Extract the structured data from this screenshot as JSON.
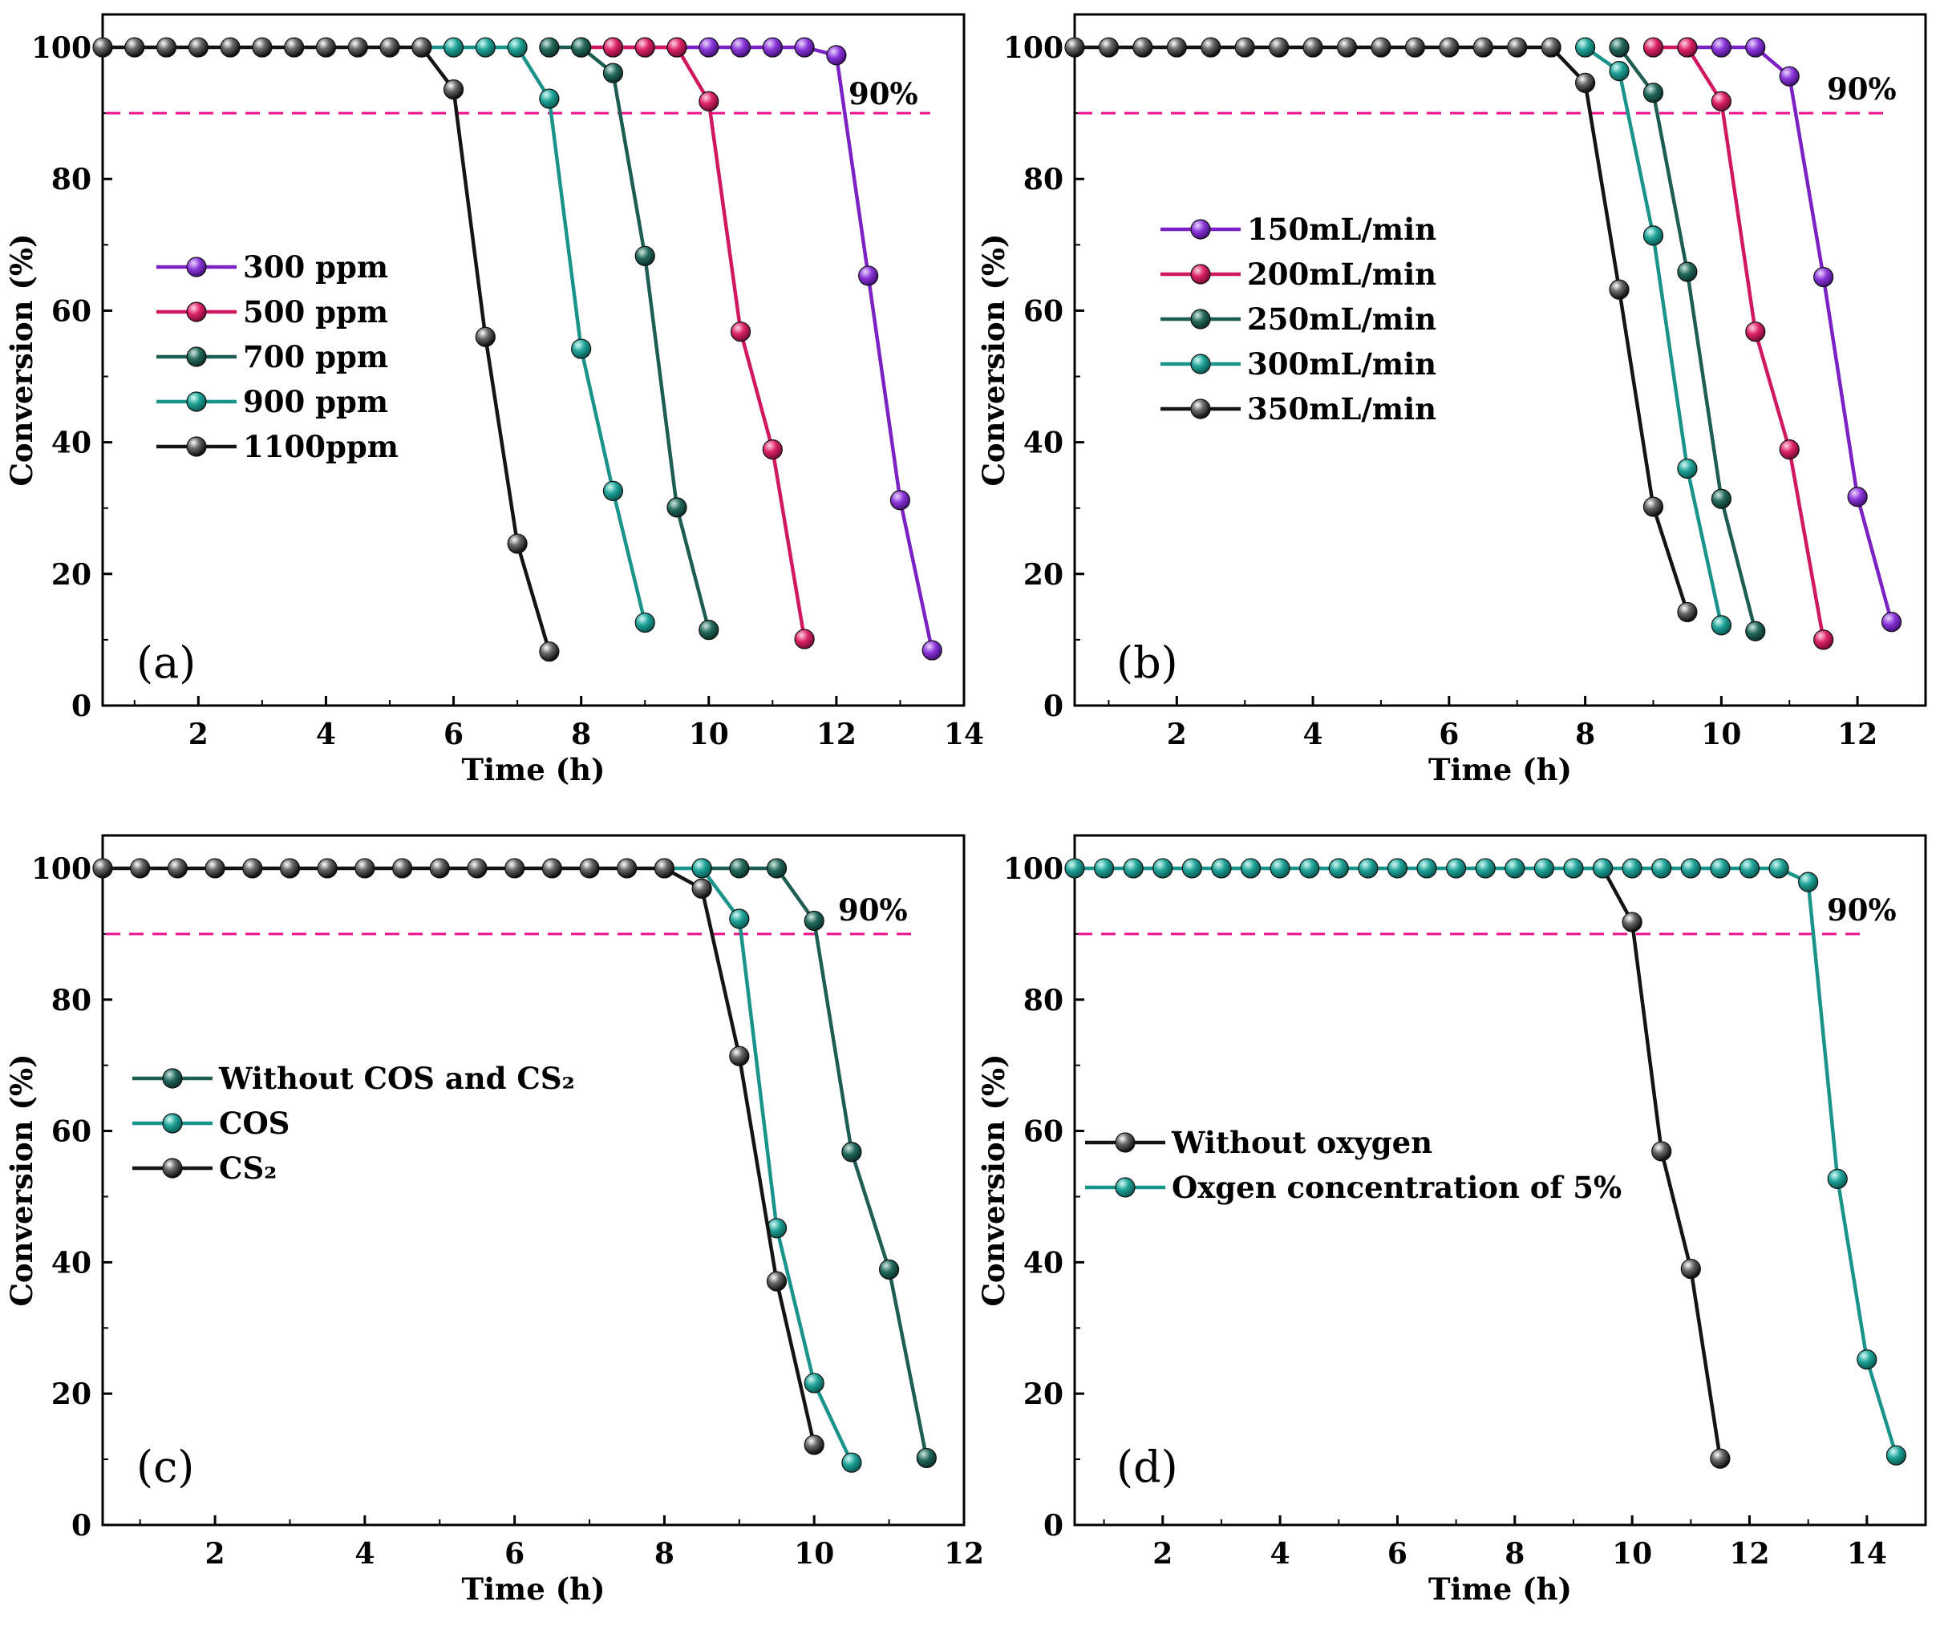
{
  "colors": {
    "purple": "#7a22c4",
    "crimson": "#d01860",
    "darkgreen": "#1e5e52",
    "teal": "#1a948a",
    "black": "#141414",
    "refline": "#f0128c"
  },
  "chart_data": [
    {
      "type": "line",
      "panel": "(a)",
      "xlabel": "Time (h)",
      "ylabel": "Conversion (%)",
      "xlim": [
        0.5,
        14
      ],
      "ylim": [
        0,
        105
      ],
      "xticks": [
        2,
        4,
        6,
        8,
        10,
        12,
        14
      ],
      "yticks": [
        0,
        20,
        40,
        60,
        80,
        100
      ],
      "reference_line": {
        "y": 90,
        "label": "90%"
      },
      "legend_position": "center-left",
      "series": [
        {
          "name": "300 ppm",
          "color": "purple",
          "x": [
            8.5,
            9,
            9.5,
            10,
            10.5,
            11,
            11.5,
            12,
            12.5,
            13,
            13.5
          ],
          "y": [
            100,
            100,
            100,
            100,
            100,
            100,
            100,
            98.8,
            65.3,
            31.2,
            8.4
          ]
        },
        {
          "name": "500 ppm",
          "color": "crimson",
          "x": [
            8,
            8.5,
            9,
            9.5,
            10,
            10.5,
            11,
            11.5
          ],
          "y": [
            100,
            100,
            100,
            100,
            91.8,
            56.8,
            38.9,
            10.1
          ]
        },
        {
          "name": "700 ppm",
          "color": "darkgreen",
          "x": [
            7.5,
            8,
            8.5,
            9,
            9.5,
            10
          ],
          "y": [
            100,
            100,
            96.1,
            68.3,
            30.1,
            11.5
          ]
        },
        {
          "name": "900 ppm",
          "color": "teal",
          "x": [
            5.5,
            6,
            6.5,
            7,
            7.5,
            8,
            8.5,
            9
          ],
          "y": [
            100,
            100,
            100,
            100,
            92.2,
            54.2,
            32.6,
            12.6
          ]
        },
        {
          "name": "1100ppm",
          "color": "black",
          "x": [
            0.5,
            1,
            1.5,
            2,
            2.5,
            3,
            3.5,
            4,
            4.5,
            5,
            5.5,
            6,
            6.5,
            7,
            7.5
          ],
          "y": [
            100,
            100,
            100,
            100,
            100,
            100,
            100,
            100,
            100,
            100,
            100,
            93.6,
            56.0,
            24.6,
            8.2
          ]
        }
      ]
    },
    {
      "type": "line",
      "panel": "(b)",
      "xlabel": "Time (h)",
      "ylabel": "Conversion (%)",
      "xlim": [
        0.5,
        13
      ],
      "ylim": [
        0,
        105
      ],
      "xticks": [
        2,
        4,
        6,
        8,
        10,
        12
      ],
      "yticks": [
        0,
        20,
        40,
        60,
        80,
        100
      ],
      "reference_line": {
        "y": 90,
        "label": "90%"
      },
      "legend_position": "center-left",
      "series": [
        {
          "name": "150mL/min",
          "color": "purple",
          "x": [
            9.5,
            10,
            10.5,
            11,
            11.5,
            12,
            12.5
          ],
          "y": [
            100,
            100,
            100,
            95.6,
            65.1,
            31.7,
            12.7
          ]
        },
        {
          "name": "200mL/min",
          "color": "crimson",
          "x": [
            9,
            9.5,
            10,
            10.5,
            11,
            11.5
          ],
          "y": [
            100,
            100,
            91.8,
            56.8,
            38.9,
            10.0
          ]
        },
        {
          "name": "250mL/min",
          "color": "darkgreen",
          "x": [
            8.5,
            9,
            9.5,
            10,
            10.5
          ],
          "y": [
            100,
            93.1,
            65.9,
            31.4,
            11.3
          ]
        },
        {
          "name": "300mL/min",
          "color": "teal",
          "x": [
            8,
            8.5,
            9,
            9.5,
            10
          ],
          "y": [
            100,
            96.4,
            71.4,
            36.0,
            12.2
          ]
        },
        {
          "name": "350mL/min",
          "color": "black",
          "x": [
            0.5,
            1,
            1.5,
            2,
            2.5,
            3,
            3.5,
            4,
            4.5,
            5,
            5.5,
            6,
            6.5,
            7,
            7.5,
            8,
            8.5,
            9,
            9.5
          ],
          "y": [
            100,
            100,
            100,
            100,
            100,
            100,
            100,
            100,
            100,
            100,
            100,
            100,
            100,
            100,
            100,
            94.6,
            63.2,
            30.2,
            14.2
          ]
        }
      ]
    },
    {
      "type": "line",
      "panel": "(c)",
      "xlabel": "Time (h)",
      "ylabel": "Conversion (%)",
      "xlim": [
        0.5,
        12
      ],
      "ylim": [
        0,
        105
      ],
      "xticks": [
        2,
        4,
        6,
        8,
        10,
        12
      ],
      "yticks": [
        0,
        20,
        40,
        60,
        80,
        100
      ],
      "reference_line": {
        "y": 90,
        "label": "90%"
      },
      "legend_position": "center-left",
      "series": [
        {
          "name": "Without COS and CS₂",
          "color": "darkgreen",
          "x": [
            8.5,
            9,
            9.5,
            10,
            10.5,
            11,
            11.5
          ],
          "y": [
            100,
            100,
            100,
            92.0,
            56.8,
            38.9,
            10.2
          ]
        },
        {
          "name": "COS",
          "color": "teal",
          "x": [
            8,
            8.5,
            9,
            9.5,
            10,
            10.5
          ],
          "y": [
            100,
            100,
            92.3,
            45.2,
            21.6,
            9.5
          ]
        },
        {
          "name": "CS₂",
          "color": "black",
          "x": [
            0.5,
            1,
            1.5,
            2,
            2.5,
            3,
            3.5,
            4,
            4.5,
            5,
            5.5,
            6,
            6.5,
            7,
            7.5,
            8,
            8.5,
            9,
            9.5,
            10
          ],
          "y": [
            100,
            100,
            100,
            100,
            100,
            100,
            100,
            100,
            100,
            100,
            100,
            100,
            100,
            100,
            100,
            100,
            96.9,
            71.4,
            37.1,
            12.2
          ]
        }
      ]
    },
    {
      "type": "line",
      "panel": "(d)",
      "xlabel": "Time (h)",
      "ylabel": "Conversion (%)",
      "xlim": [
        0.5,
        15
      ],
      "ylim": [
        0,
        105
      ],
      "xticks": [
        2,
        4,
        6,
        8,
        10,
        12,
        14
      ],
      "yticks": [
        0,
        20,
        40,
        60,
        80,
        100
      ],
      "reference_line": {
        "y": 90,
        "label": "90%"
      },
      "legend_position": "center-left",
      "series": [
        {
          "name": "Without oxygen",
          "color": "black",
          "x": [
            9.5,
            10,
            10.5,
            11,
            11.5
          ],
          "y": [
            100,
            91.8,
            56.9,
            39.0,
            10.1
          ]
        },
        {
          "name": "Oxgen concentration of 5%",
          "color": "teal",
          "x": [
            0.5,
            1,
            1.5,
            2,
            2.5,
            3,
            3.5,
            4,
            4.5,
            5,
            5.5,
            6,
            6.5,
            7,
            7.5,
            8,
            8.5,
            9,
            9.5,
            10,
            10.5,
            11,
            11.5,
            12,
            12.5,
            13,
            13.5,
            14,
            14.5
          ],
          "y": [
            100,
            100,
            100,
            100,
            100,
            100,
            100,
            100,
            100,
            100,
            100,
            100,
            100,
            100,
            100,
            100,
            100,
            100,
            100,
            100,
            100,
            100,
            100,
            100,
            100,
            97.9,
            52.7,
            25.2,
            10.6
          ]
        }
      ]
    }
  ]
}
